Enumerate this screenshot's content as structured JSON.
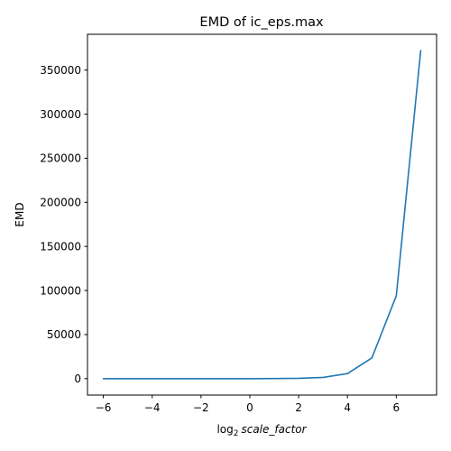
{
  "chart_data": {
    "type": "line",
    "title": "EMD of ic_eps.max",
    "xlabel": {
      "log": "log",
      "sub": "2",
      "var": "scale_factor"
    },
    "ylabel": "EMD",
    "x": [
      -6,
      -5,
      -4,
      -3,
      -2,
      -1,
      0,
      1,
      2,
      3,
      4,
      5,
      6,
      7
    ],
    "series": [
      {
        "color": "#1f77b4",
        "values": [
          0,
          0,
          0,
          0,
          0,
          0,
          0,
          100,
          350,
          1450,
          5800,
          23500,
          94000,
          372000
        ]
      }
    ],
    "xlim": [
      -6.65,
      7.65
    ],
    "ylim": [
      -18600,
      390600
    ],
    "xticks": [
      -6,
      -4,
      -2,
      0,
      2,
      4,
      6
    ],
    "yticks": [
      0,
      50000,
      100000,
      150000,
      200000,
      250000,
      300000,
      350000
    ],
    "grid": false
  }
}
